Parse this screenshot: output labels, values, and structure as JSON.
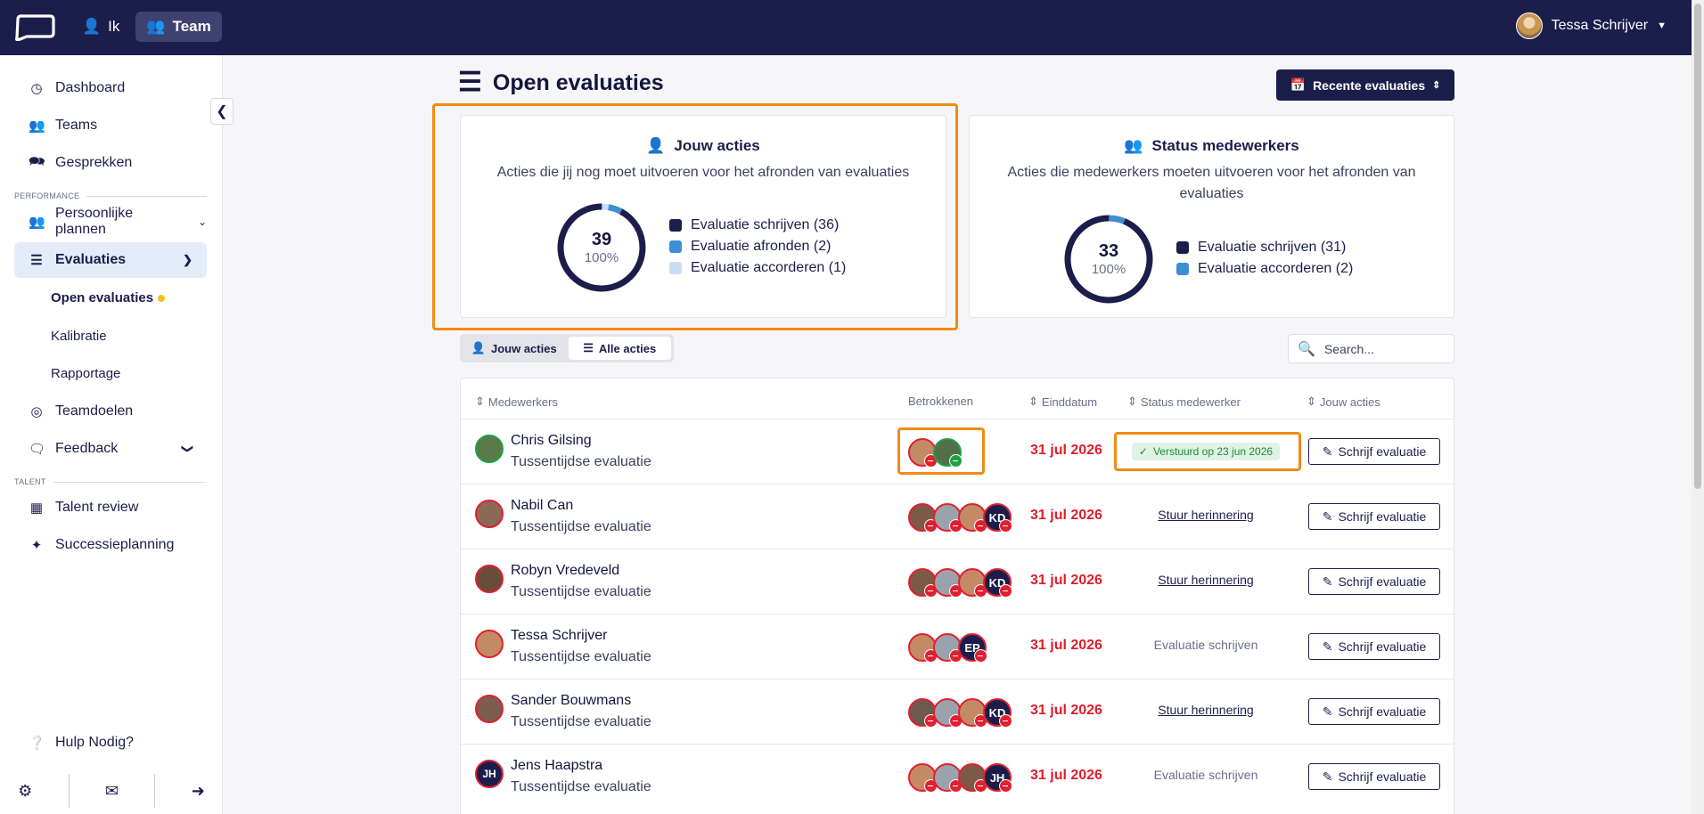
{
  "topbar": {
    "nav": [
      {
        "label": "Ik",
        "icon": "user-icon"
      },
      {
        "label": "Team",
        "icon": "users-icon",
        "active": true
      }
    ],
    "user_name": "Tessa Schrijver"
  },
  "sidebar": {
    "items": [
      {
        "label": "Dashboard",
        "icon": "dashboard-icon"
      },
      {
        "label": "Teams",
        "icon": "teams-icon"
      },
      {
        "label": "Gesprekken",
        "icon": "chat-icon"
      }
    ],
    "section_performance": "PERFORMANCE",
    "persoonlijke": "Persoonlijke plannen",
    "evaluaties": "Evaluaties",
    "sub": [
      "Open evaluaties",
      "Kalibratie",
      "Rapportage"
    ],
    "teamdoelen": "Teamdoelen",
    "feedback": "Feedback",
    "section_talent": "TALENT",
    "talent_review": "Talent review",
    "successie": "Successieplanning",
    "help": "Hulp Nodig?"
  },
  "page": {
    "title": "Open evaluaties",
    "recent_button": "Recente evaluaties"
  },
  "cards": {
    "jouw": {
      "title": "Jouw acties",
      "desc": "Acties die jij nog moet uitvoeren voor het afronden van evaluaties",
      "total": "39",
      "percent": "100%",
      "legend": [
        "Evaluatie schrijven (36)",
        "Evaluatie afronden (2)",
        "Evaluatie accorderen (1)"
      ],
      "values": [
        36,
        2,
        1
      ],
      "colors": [
        "#1b1e4b",
        "#3f8ed4",
        "#c9def2"
      ]
    },
    "status": {
      "title": "Status medewerkers",
      "desc": "Acties die medewerkers moeten uitvoeren voor het afronden van evaluaties",
      "total": "33",
      "percent": "100%",
      "legend": [
        "Evaluatie schrijven (31)",
        "Evaluatie accorderen (2)"
      ],
      "values": [
        31,
        2
      ],
      "colors": [
        "#1b1e4b",
        "#3f8ed4"
      ]
    }
  },
  "filters": {
    "jouw": "Jouw acties",
    "alle": "Alle acties",
    "search_placeholder": "Search..."
  },
  "table": {
    "headers": [
      "Medewerkers",
      "Betrokkenen",
      "Einddatum",
      "Status medewerker",
      "Jouw acties"
    ],
    "action_label": "Schrijf evaluatie",
    "rows": [
      {
        "name": "Chris Gilsing",
        "type": "Tussentijdse evaluatie",
        "date": "31 jul 2026",
        "status": "Verstuurd op 23 jun 2026",
        "status_kind": "badge"
      },
      {
        "name": "Nabil Can",
        "type": "Tussentijdse evaluatie",
        "date": "31 jul 2026",
        "status": "Stuur herinnering",
        "status_kind": "link"
      },
      {
        "name": "Robyn Vredeveld",
        "type": "Tussentijdse evaluatie",
        "date": "31 jul 2026",
        "status": "Stuur herinnering",
        "status_kind": "link"
      },
      {
        "name": "Tessa Schrijver",
        "type": "Tussentijdse evaluatie",
        "date": "31 jul 2026",
        "status": "Evaluatie schrijven",
        "status_kind": "text"
      },
      {
        "name": "Sander Bouwmans",
        "type": "Tussentijdse evaluatie",
        "date": "31 jul 2026",
        "status": "Stuur herinnering",
        "status_kind": "link"
      },
      {
        "name": "Jens Haapstra",
        "type": "Tussentijdse evaluatie",
        "date": "31 jul 2026",
        "status": "Evaluatie schrijven",
        "status_kind": "text"
      }
    ],
    "initials": {
      "kd": "KD",
      "ep": "EP",
      "jh": "JH"
    }
  }
}
